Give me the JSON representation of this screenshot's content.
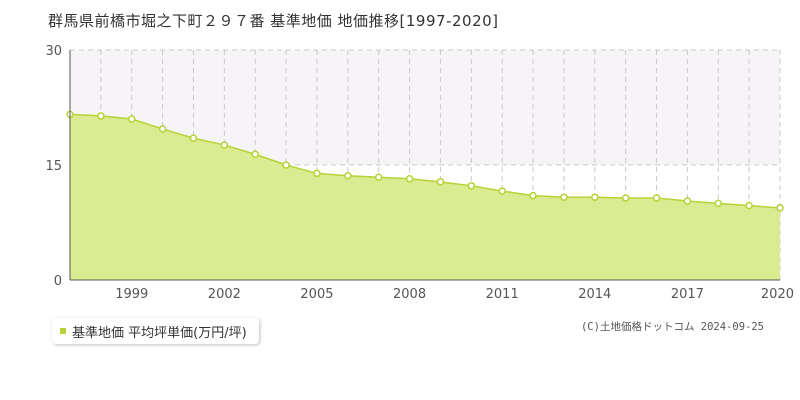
{
  "title": "群馬県前橋市堀之下町２９７番 基準地価 地価推移[1997-2020]",
  "legend_label": "基準地価 平均坪単価(万円/坪)",
  "copyright": "(C)土地価格ドットコム 2024-09-25",
  "colors": {
    "area_fill": "#dbeb91",
    "line": "#b5d334",
    "marker_fill": "#ffffff",
    "band_fill": "#f7f4f8",
    "grid": "#c8c8c8",
    "axis": "#555555",
    "legend_marker": "#b5d334"
  },
  "chart_data": {
    "type": "area",
    "x": [
      1997,
      1998,
      1999,
      2000,
      2001,
      2002,
      2003,
      2004,
      2005,
      2006,
      2007,
      2008,
      2009,
      2010,
      2011,
      2012,
      2013,
      2014,
      2015,
      2016,
      2017,
      2018,
      2019,
      2020
    ],
    "series": [
      {
        "values": [
          21.6,
          21.4,
          21.0,
          19.7,
          18.5,
          17.6,
          16.4,
          15.0,
          13.9,
          13.6,
          13.4,
          13.2,
          12.8,
          12.3,
          11.6,
          11.0,
          10.8,
          10.8,
          10.7,
          10.7,
          10.3,
          10.0,
          9.7,
          9.4
        ]
      }
    ],
    "xlim": [
      1997,
      2020
    ],
    "ylim": [
      0,
      30
    ],
    "yticks": [
      0,
      15,
      30
    ],
    "xticks": [
      1999,
      2002,
      2005,
      2008,
      2011,
      2014,
      2017,
      2020
    ],
    "grid": true
  }
}
